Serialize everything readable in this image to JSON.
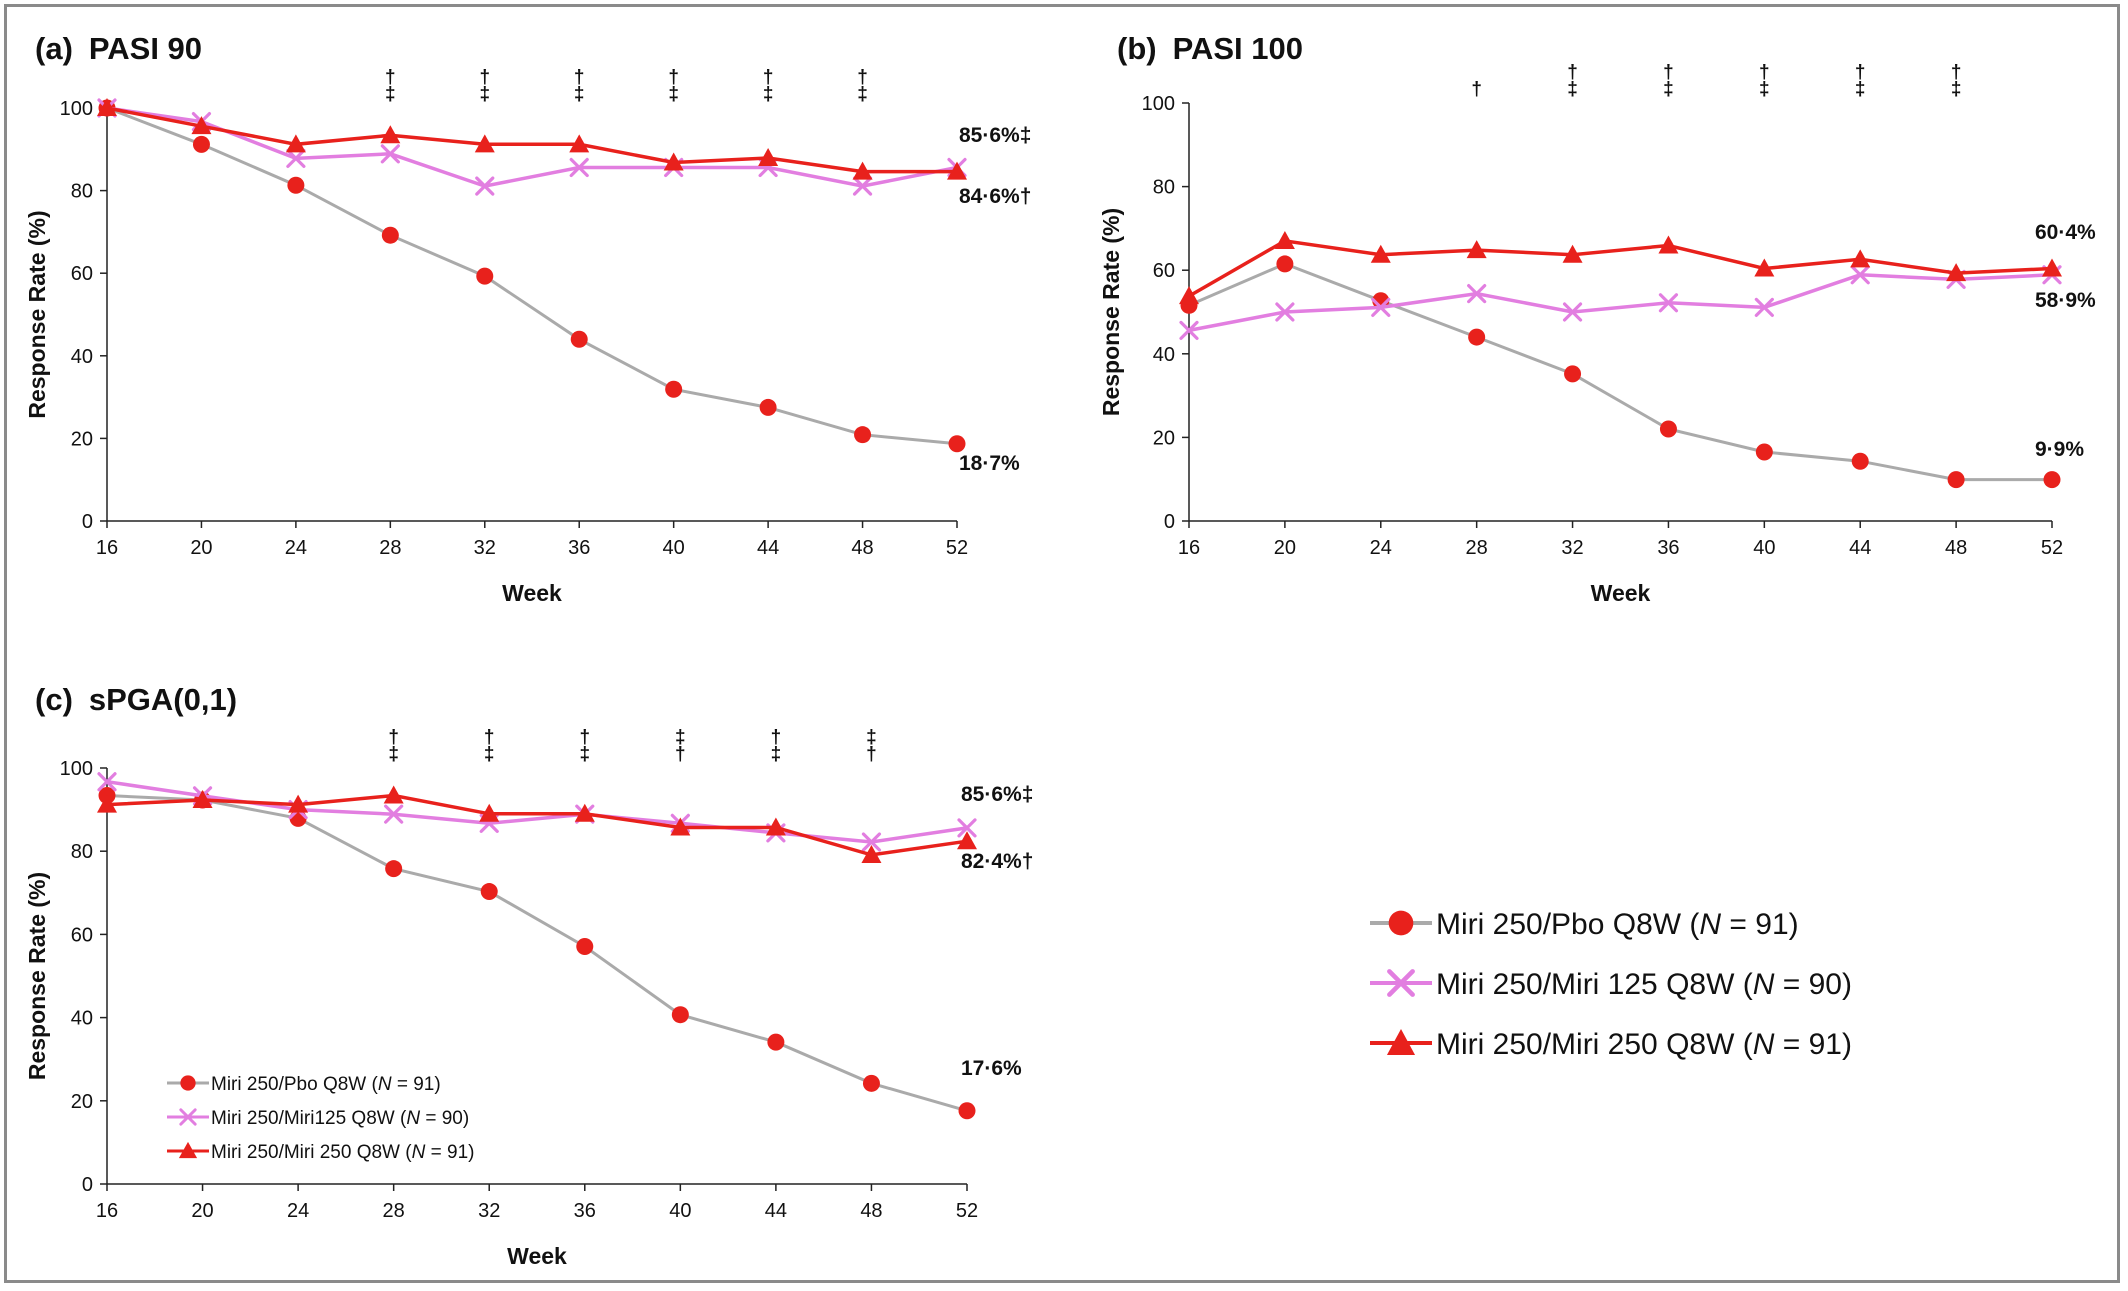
{
  "figure": {
    "legend_font_note": "",
    "big_legend": [
      {
        "label": "Miri 250/Pbo Q8W (",
        "italic": "N",
        "rest": " = 91)"
      },
      {
        "label": "Miri 250/Miri 125 Q8W (",
        "italic": "N",
        "rest": " = 90)"
      },
      {
        "label": "Miri 250/Miri 250 Q8W (",
        "italic": "N",
        "rest": " = 91)"
      }
    ]
  },
  "series_styles": [
    {
      "line": "#aaaaaa",
      "marker": "circle",
      "color": "#e8211c"
    },
    {
      "line": "#e27ee0",
      "marker": "x",
      "color": "#e27ee0"
    },
    {
      "line": "#e8211c",
      "marker": "triangle",
      "color": "#e8211c"
    }
  ],
  "chart_data": [
    {
      "type": "line",
      "panel": "(a)",
      "title": "PASI 90",
      "xlabel": "Week",
      "ylabel": "Response Rate (%)",
      "x": [
        16,
        20,
        24,
        28,
        32,
        36,
        40,
        44,
        48,
        52
      ],
      "ylim": [
        0,
        100
      ],
      "yticks": [
        0,
        20,
        40,
        60,
        80,
        100
      ],
      "series": [
        {
          "values": [
            100,
            91.2,
            81.3,
            69.2,
            59.3,
            44,
            31.9,
            27.5,
            20.9,
            18.7
          ]
        },
        {
          "values": [
            100,
            96.7,
            87.8,
            88.9,
            81.1,
            85.6,
            85.6,
            85.6,
            81.1,
            85.6
          ]
        },
        {
          "values": [
            100,
            95.6,
            91.2,
            93.4,
            91.2,
            91.2,
            86.8,
            87.9,
            84.6,
            84.6
          ]
        }
      ],
      "significance": [
        {
          "x": 28,
          "marks": [
            "†",
            "‡"
          ]
        },
        {
          "x": 32,
          "marks": [
            "†",
            "‡"
          ]
        },
        {
          "x": 36,
          "marks": [
            "†",
            "‡"
          ]
        },
        {
          "x": 40,
          "marks": [
            "†",
            "‡"
          ]
        },
        {
          "x": 44,
          "marks": [
            "†",
            "‡"
          ]
        },
        {
          "x": 48,
          "marks": [
            "†",
            "‡"
          ]
        }
      ],
      "end_labels": [
        {
          "text": "85·6%‡"
        },
        {
          "text": "84·6%†"
        },
        {
          "text": "18·7%"
        }
      ]
    },
    {
      "type": "line",
      "panel": "(b)",
      "title": "PASI 100",
      "xlabel": "Week",
      "ylabel": "Response Rate (%)",
      "x": [
        16,
        20,
        24,
        28,
        32,
        36,
        40,
        44,
        48,
        52
      ],
      "ylim": [
        0,
        100
      ],
      "yticks": [
        0,
        20,
        40,
        60,
        80,
        100
      ],
      "series": [
        {
          "values": [
            51.6,
            61.5,
            52.7,
            44,
            35.2,
            22,
            16.5,
            14.3,
            9.9,
            9.9
          ]
        },
        {
          "values": [
            45.6,
            50,
            51.1,
            54.4,
            50,
            52.2,
            51.1,
            58.9,
            57.8,
            58.9
          ]
        },
        {
          "values": [
            53.8,
            67,
            63.7,
            64.8,
            63.7,
            65.9,
            60.4,
            62.6,
            59.3,
            60.4
          ]
        }
      ],
      "significance": [
        {
          "x": 28,
          "marks": [
            "†"
          ]
        },
        {
          "x": 32,
          "marks": [
            "†",
            "‡"
          ]
        },
        {
          "x": 36,
          "marks": [
            "†",
            "‡"
          ]
        },
        {
          "x": 40,
          "marks": [
            "†",
            "‡"
          ]
        },
        {
          "x": 44,
          "marks": [
            "†",
            "‡"
          ]
        },
        {
          "x": 48,
          "marks": [
            "†",
            "‡"
          ]
        }
      ],
      "end_labels": [
        {
          "text": "60·4%"
        },
        {
          "text": "58·9%"
        },
        {
          "text": "9·9%"
        }
      ]
    },
    {
      "type": "line",
      "panel": "(c)",
      "title": "sPGA(0,1)",
      "xlabel": "Week",
      "ylabel": "Response Rate (%)",
      "x": [
        16,
        20,
        24,
        28,
        32,
        36,
        40,
        44,
        48,
        52
      ],
      "ylim": [
        0,
        100
      ],
      "yticks": [
        0,
        20,
        40,
        60,
        80,
        100
      ],
      "series": [
        {
          "values": [
            93.4,
            92.3,
            87.9,
            75.8,
            70.3,
            57.1,
            40.7,
            34.1,
            24.2,
            17.6
          ]
        },
        {
          "values": [
            96.7,
            93.3,
            90,
            88.9,
            86.7,
            88.9,
            86.7,
            84.4,
            82.2,
            85.6
          ]
        },
        {
          "values": [
            91.2,
            92.3,
            91.2,
            93.4,
            89,
            89,
            85.7,
            85.7,
            79.1,
            82.4
          ]
        }
      ],
      "significance": [
        {
          "x": 28,
          "marks": [
            "†",
            "‡"
          ]
        },
        {
          "x": 32,
          "marks": [
            "†",
            "‡"
          ]
        },
        {
          "x": 36,
          "marks": [
            "†",
            "‡"
          ]
        },
        {
          "x": 40,
          "marks": [
            "‡",
            "†"
          ]
        },
        {
          "x": 44,
          "marks": [
            "†",
            "‡"
          ]
        },
        {
          "x": 48,
          "marks": [
            "‡",
            "†"
          ]
        }
      ],
      "end_labels": [
        {
          "text": "85·6%‡"
        },
        {
          "text": "82·4%†"
        },
        {
          "text": "17·6%"
        }
      ],
      "legend": [
        {
          "label": "Miri 250/Pbo Q8W (",
          "italic": "N",
          "rest": " = 91)"
        },
        {
          "label": "Miri 250/Miri125 Q8W (",
          "italic": "N",
          "rest": " = 90)"
        },
        {
          "label": "Miri 250/Miri 250 Q8W (",
          "italic": "N",
          "rest": " = 91)"
        }
      ]
    }
  ]
}
